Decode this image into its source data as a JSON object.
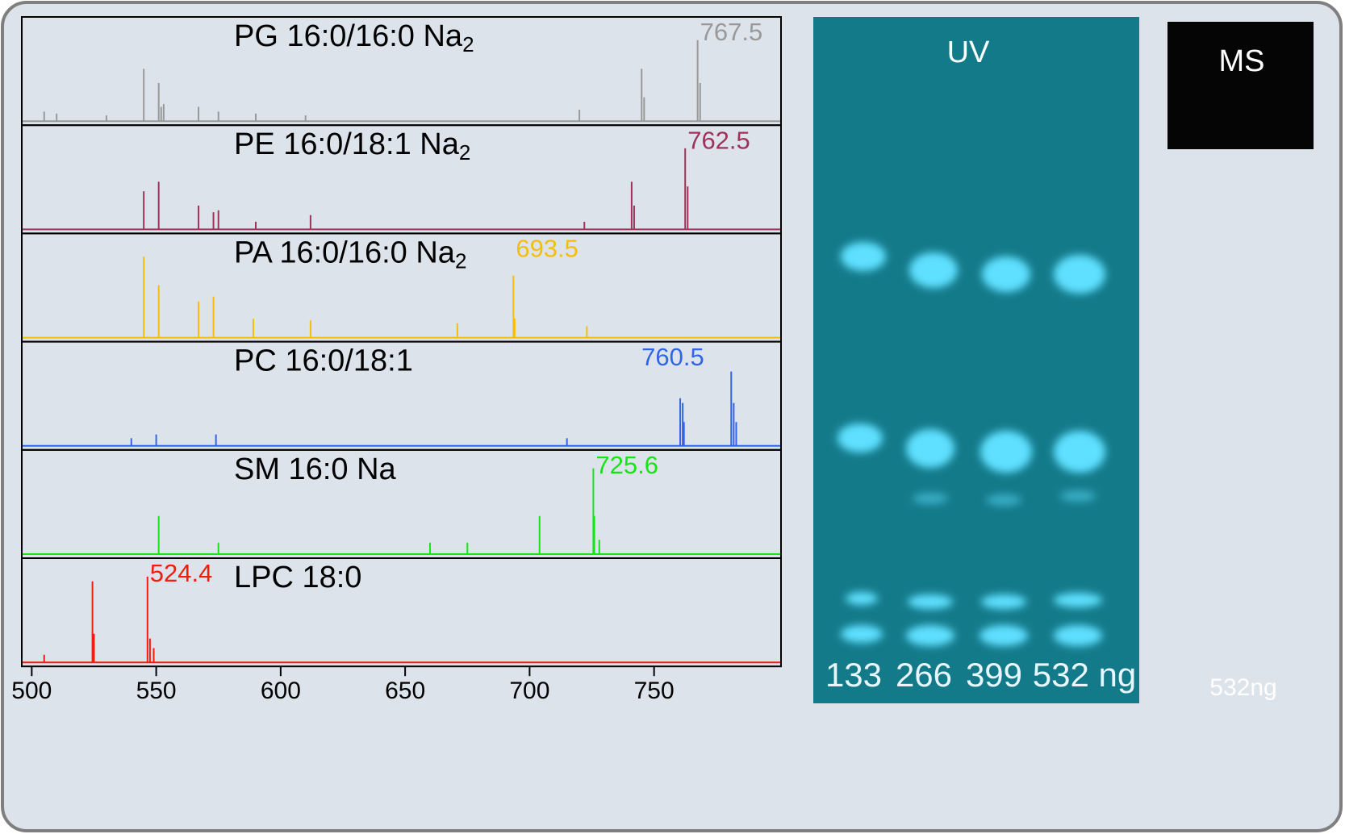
{
  "chart_data": {
    "type": "stacked-spectra",
    "xlim": [
      496,
      801
    ],
    "xticks": [
      500,
      550,
      600,
      650,
      700,
      750
    ],
    "panels": [
      {
        "name": "PG 16:0/16:0 Na",
        "name_sub": "2",
        "color": "#999999",
        "annotation": 767.5,
        "annotation_x": 767.5,
        "x": [
          505,
          510,
          530,
          545,
          551,
          552,
          553,
          567,
          575,
          590,
          610,
          720,
          745,
          746,
          767.5,
          768.5
        ],
        "values": [
          10,
          8,
          6,
          55,
          40,
          15,
          18,
          15,
          10,
          8,
          6,
          12,
          55,
          25,
          85,
          40
        ]
      },
      {
        "name": "PE 16:0/18:1 Na",
        "name_sub": "2",
        "color": "#a0325a",
        "annotation": 762.5,
        "annotation_x": 762.5,
        "x": [
          545,
          551,
          567,
          573,
          575,
          590,
          612,
          722,
          741,
          742,
          762.5,
          763.5
        ],
        "values": [
          40,
          50,
          25,
          18,
          20,
          8,
          15,
          8,
          50,
          25,
          85,
          45
        ]
      },
      {
        "name": "PA 16:0/16:0 Na",
        "name_sub": "2",
        "color": "#f5be0a",
        "annotation": 693.5,
        "annotation_x": 693.5,
        "x": [
          545,
          551,
          567,
          573,
          589,
          612,
          671,
          693.5,
          694,
          723
        ],
        "values": [
          85,
          55,
          38,
          43,
          20,
          18,
          15,
          65,
          20,
          12
        ]
      },
      {
        "name": "PC 16:0/18:1",
        "color": "#3264e6",
        "annotation": 760.5,
        "annotation_x": 744,
        "x": [
          540,
          550,
          574,
          715,
          760.5,
          761.5,
          762,
          781,
          782,
          783
        ],
        "values": [
          8,
          12,
          12,
          8,
          50,
          45,
          25,
          78,
          45,
          25
        ]
      },
      {
        "name": "SM 16:0 Na",
        "color": "#14e614",
        "annotation": 725.6,
        "annotation_x": 725.6,
        "x": [
          551,
          575,
          660,
          675,
          704,
          725.6,
          726,
          728
        ],
        "values": [
          40,
          12,
          12,
          12,
          40,
          90,
          40,
          15
        ]
      },
      {
        "name": "LPC 18:0",
        "color": "#f01e0a",
        "annotation": 524.4,
        "annotation_x": 546.5,
        "x": [
          505,
          524.4,
          525,
          546.5,
          547.5,
          549
        ],
        "values": [
          8,
          85,
          30,
          90,
          25,
          15
        ]
      }
    ]
  },
  "uv_plate": {
    "title": "UV",
    "lanes": [
      "133",
      "266",
      "399",
      "532 ng"
    ]
  },
  "ms_image": {
    "title": "MS",
    "label": "532ng"
  }
}
